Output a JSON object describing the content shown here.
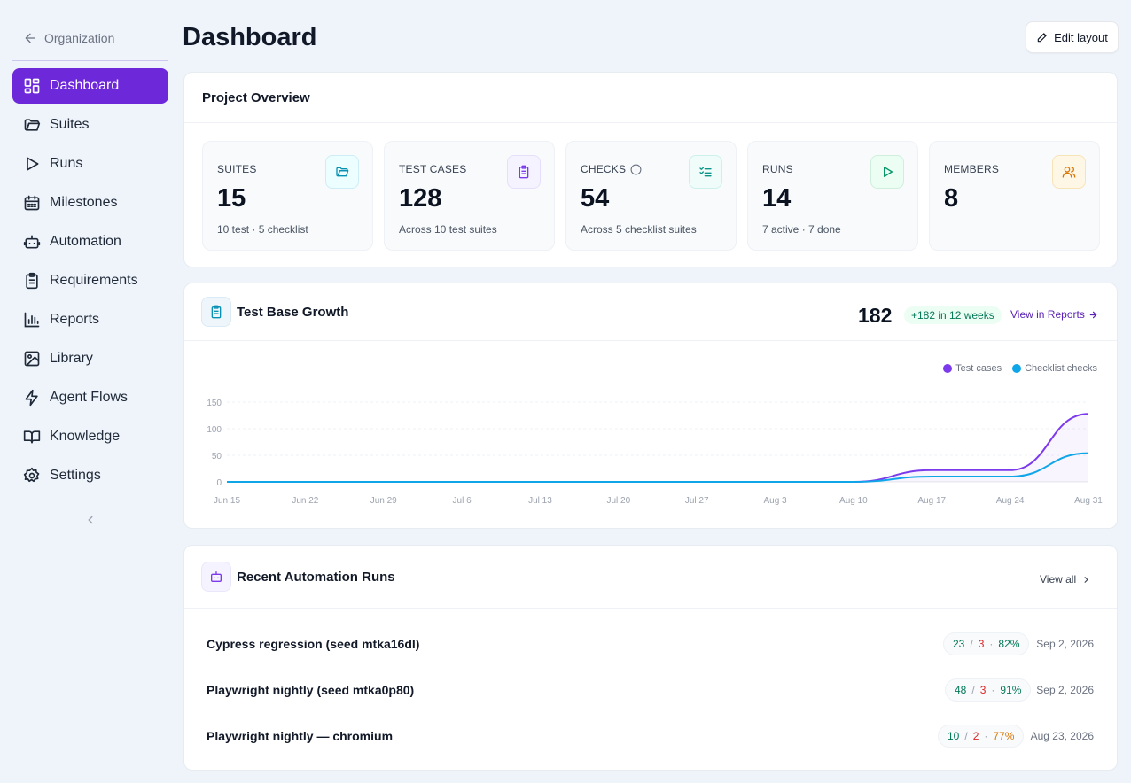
{
  "sidebar": {
    "back_label": "Organization",
    "items": [
      {
        "label": "Dashboard",
        "icon": "dashboard-icon",
        "active": true
      },
      {
        "label": "Suites",
        "icon": "folder-icon"
      },
      {
        "label": "Runs",
        "icon": "play-icon"
      },
      {
        "label": "Milestones",
        "icon": "calendar-icon"
      },
      {
        "label": "Automation",
        "icon": "robot-icon"
      },
      {
        "label": "Requirements",
        "icon": "clipboard-icon"
      },
      {
        "label": "Reports",
        "icon": "bar-chart-icon"
      },
      {
        "label": "Library",
        "icon": "image-icon"
      },
      {
        "label": "Agent Flows",
        "icon": "lightning-icon"
      },
      {
        "label": "Knowledge",
        "icon": "book-icon"
      },
      {
        "label": "Settings",
        "icon": "gear-icon"
      }
    ]
  },
  "header": {
    "title": "Dashboard",
    "edit_label": "Edit layout"
  },
  "overview": {
    "title": "Project Overview",
    "stats": [
      {
        "label": "SUITES",
        "value": "15",
        "sub": "10 test · 5 checklist",
        "icon": "folder-icon",
        "color": "#0891b2"
      },
      {
        "label": "TEST CASES",
        "value": "128",
        "sub": "Across 10 test suites",
        "icon": "clipboard-icon",
        "color": "#7c3aed"
      },
      {
        "label": "CHECKS",
        "value": "54",
        "sub": "Across 5 checklist suites",
        "icon": "checklist-icon",
        "color": "#0d9488"
      },
      {
        "label": "RUNS",
        "value": "14",
        "sub": "7 active · 7 done",
        "icon": "play-icon",
        "color": "#059669"
      },
      {
        "label": "MEMBERS",
        "value": "8",
        "sub": "",
        "icon": "users-icon",
        "color": "#d97706"
      }
    ]
  },
  "growth": {
    "title": "Test Base Growth",
    "total": "182",
    "badge": "+182 in 12 weeks",
    "link_label": "View in Reports",
    "legend": [
      {
        "label": "Test cases",
        "color": "#7c3aed"
      },
      {
        "label": "Checklist checks",
        "color": "#0ea5e9"
      }
    ]
  },
  "chart_data": {
    "type": "line",
    "x": [
      "Jun 15",
      "Jun 22",
      "Jun 29",
      "Jul 6",
      "Jul 13",
      "Jul 20",
      "Jul 27",
      "Aug 3",
      "Aug 10",
      "Aug 17",
      "Aug 24",
      "Aug 31"
    ],
    "series": [
      {
        "name": "Test cases",
        "color": "#7c3aed",
        "values": [
          0,
          0,
          0,
          0,
          0,
          0,
          0,
          0,
          0,
          22,
          22,
          128
        ]
      },
      {
        "name": "Checklist checks",
        "color": "#0ea5e9",
        "values": [
          0,
          0,
          0,
          0,
          0,
          0,
          0,
          0,
          0,
          10,
          10,
          54
        ]
      }
    ],
    "yticks": [
      0,
      50,
      100,
      150
    ],
    "ylim": [
      0,
      150
    ],
    "grid": true,
    "legend_position": "top-right"
  },
  "runs": {
    "title": "Recent Automation Runs",
    "view_all": "View all",
    "items": [
      {
        "name": "Cypress regression (seed mtka16dl)",
        "passed": "23",
        "failed": "3",
        "rate": "82%",
        "date": "Sep 2, 2026",
        "rate_level": "good"
      },
      {
        "name": "Playwright nightly (seed mtka0p80)",
        "passed": "48",
        "failed": "3",
        "rate": "91%",
        "date": "Sep 2, 2026",
        "rate_level": "good"
      },
      {
        "name": "Playwright nightly — chromium",
        "passed": "10",
        "failed": "2",
        "rate": "77%",
        "date": "Aug 23, 2026",
        "rate_level": "mid"
      }
    ]
  }
}
